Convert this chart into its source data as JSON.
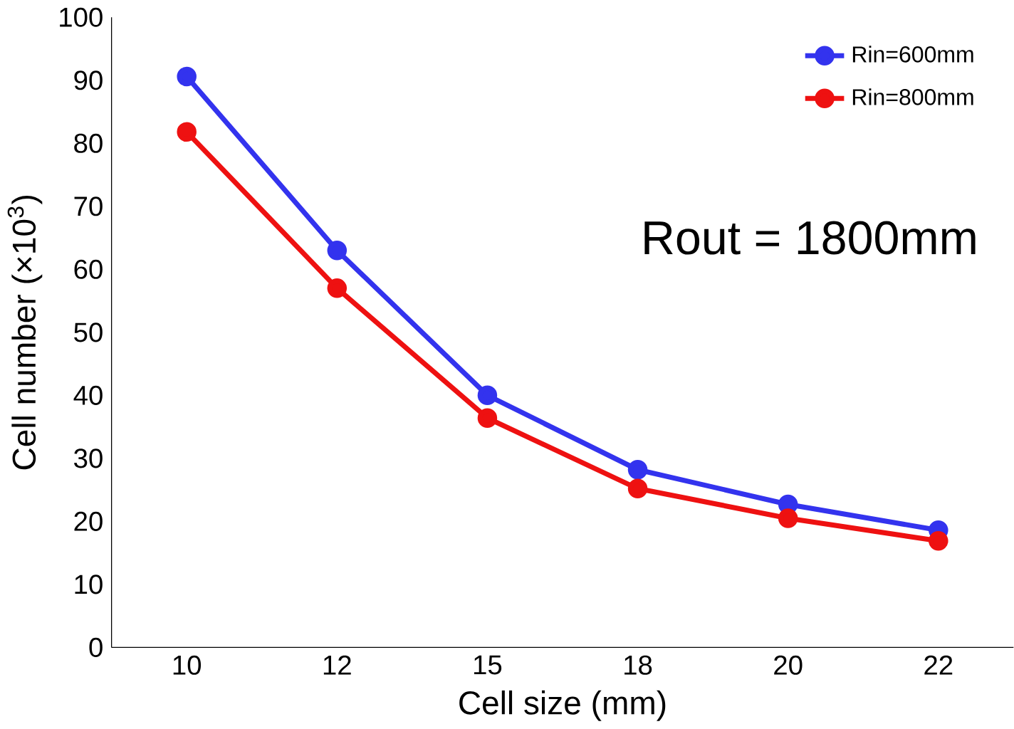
{
  "chart_data": {
    "type": "line",
    "xlabel": "Cell size (mm)",
    "ylabel": "Cell number (×10$^{3}$)",
    "categories": [
      "10",
      "12",
      "15",
      "18",
      "20",
      "22"
    ],
    "series": [
      {
        "name": "Rin=600mm",
        "color": "#3333ee",
        "values": [
          90.6,
          63,
          40,
          28.2,
          22.7,
          18.6
        ]
      },
      {
        "name": "Rin=800mm",
        "color": "#ee1111",
        "values": [
          81.8,
          57,
          36.4,
          25.2,
          20.5,
          16.9
        ]
      }
    ],
    "ylim": [
      0,
      100
    ],
    "yticks": [
      0,
      10,
      20,
      30,
      40,
      50,
      60,
      70,
      80,
      90,
      100
    ],
    "annotations": [
      "Rout = 1800mm"
    ],
    "legend": "top right",
    "marker": "circle",
    "line_style": "solid",
    "grid": false
  }
}
